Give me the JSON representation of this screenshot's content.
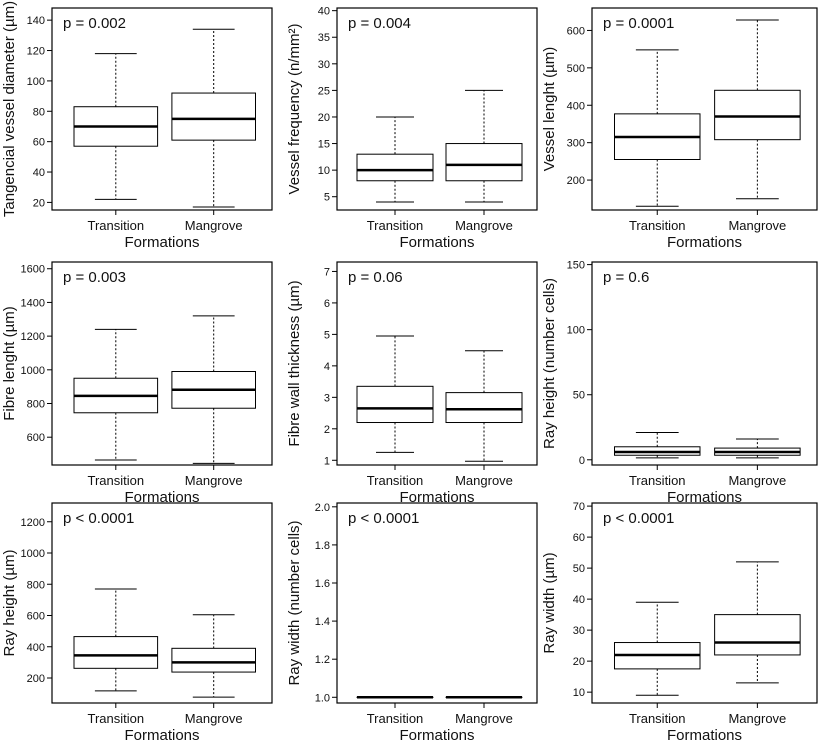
{
  "chart_data": [
    {
      "type": "box",
      "p_value": "p = 0.002",
      "xlabel": "Formations",
      "ylabel": "Tangencial vessel diameter (µm)",
      "categories": [
        "Transition",
        "Mangrove"
      ],
      "ylim": [
        15,
        148
      ],
      "yticks": [
        20,
        40,
        60,
        80,
        100,
        120,
        140
      ],
      "boxes": [
        {
          "min": 22,
          "q1": 57,
          "median": 70,
          "q3": 83,
          "max": 118
        },
        {
          "min": 17,
          "q1": 61,
          "median": 75,
          "q3": 92,
          "max": 134
        }
      ]
    },
    {
      "type": "box",
      "p_value": "p = 0.004",
      "xlabel": "Formations",
      "ylabel": "Vessel frequency (n/mm²)",
      "categories": [
        "Transition",
        "Mangrove"
      ],
      "ylim": [
        2.5,
        40.5
      ],
      "yticks": [
        5,
        10,
        15,
        20,
        25,
        30,
        35,
        40
      ],
      "boxes": [
        {
          "min": 4,
          "q1": 8,
          "median": 10,
          "q3": 13,
          "max": 20
        },
        {
          "min": 4,
          "q1": 8,
          "median": 11,
          "q3": 15,
          "max": 25
        }
      ]
    },
    {
      "type": "box",
      "p_value": "p = 0.0001",
      "xlabel": "Formations",
      "ylabel": "Vessel lenght (µm)",
      "categories": [
        "Transition",
        "Mangrove"
      ],
      "ylim": [
        120,
        660
      ],
      "yticks": [
        200,
        300,
        400,
        500,
        600
      ],
      "boxes": [
        {
          "min": 130,
          "q1": 255,
          "median": 315,
          "q3": 377,
          "max": 548
        },
        {
          "min": 150,
          "q1": 308,
          "median": 370,
          "q3": 440,
          "max": 628
        }
      ]
    },
    {
      "type": "box",
      "p_value": "p = 0.003",
      "xlabel": "Formations",
      "ylabel": "Fibre lenght (µm)",
      "categories": [
        "Transition",
        "Mangrove"
      ],
      "ylim": [
        435,
        1640
      ],
      "yticks": [
        600,
        800,
        1000,
        1200,
        1400,
        1600
      ],
      "boxes": [
        {
          "min": 465,
          "q1": 745,
          "median": 845,
          "q3": 950,
          "max": 1240
        },
        {
          "min": 445,
          "q1": 772,
          "median": 882,
          "q3": 990,
          "max": 1320
        }
      ]
    },
    {
      "type": "box",
      "p_value": "p = 0.06",
      "xlabel": "Formations",
      "ylabel": "Fibre wall thickness (µm)",
      "categories": [
        "Transition",
        "Mangrove"
      ],
      "ylim": [
        0.85,
        7.3
      ],
      "yticks": [
        1,
        2,
        3,
        4,
        5,
        6,
        7
      ],
      "boxes": [
        {
          "min": 1.25,
          "q1": 2.2,
          "median": 2.65,
          "q3": 3.35,
          "max": 4.95
        },
        {
          "min": 0.97,
          "q1": 2.2,
          "median": 2.62,
          "q3": 3.15,
          "max": 4.48
        }
      ]
    },
    {
      "type": "box",
      "p_value": "p = 0.6",
      "xlabel": "Formations",
      "ylabel": "Ray height (number cells)",
      "categories": [
        "Transition",
        "Mangrove"
      ],
      "ylim": [
        -4,
        152
      ],
      "yticks": [
        0,
        50,
        100,
        150
      ],
      "boxes": [
        {
          "min": 1.5,
          "q1": 3.5,
          "median": 6,
          "q3": 10,
          "max": 21
        },
        {
          "min": 1.5,
          "q1": 3.5,
          "median": 6,
          "q3": 9,
          "max": 16
        }
      ]
    },
    {
      "type": "box",
      "p_value": "p < 0.0001",
      "xlabel": "Formations",
      "ylabel": "Ray height (µm)",
      "categories": [
        "Transition",
        "Mangrove"
      ],
      "ylim": [
        40,
        1320
      ],
      "yticks": [
        200,
        400,
        600,
        800,
        1000,
        1200
      ],
      "boxes": [
        {
          "min": 118,
          "q1": 262,
          "median": 345,
          "q3": 465,
          "max": 770
        },
        {
          "min": 78,
          "q1": 238,
          "median": 300,
          "q3": 390,
          "max": 605
        }
      ]
    },
    {
      "type": "box",
      "p_value": "p < 0.0001",
      "xlabel": "Formations",
      "ylabel": "Ray width (number cells)",
      "categories": [
        "Transition",
        "Mangrove"
      ],
      "ylim": [
        0.97,
        2.02
      ],
      "yticks": [
        1.0,
        1.2,
        1.4,
        1.6,
        1.8,
        2.0
      ],
      "ytick_labels": [
        "1.0",
        "1.2",
        "1.4",
        "1.6",
        "1.8",
        "2.0"
      ],
      "boxes": [
        {
          "min": 1,
          "q1": 1,
          "median": 1,
          "q3": 1,
          "max": 1
        },
        {
          "min": 1,
          "q1": 1,
          "median": 1,
          "q3": 1,
          "max": 1
        }
      ]
    },
    {
      "type": "box",
      "p_value": "p < 0.0001",
      "xlabel": "Formations",
      "ylabel": "Ray width (µm)",
      "categories": [
        "Transition",
        "Mangrove"
      ],
      "ylim": [
        6.5,
        71
      ],
      "yticks": [
        10,
        20,
        30,
        40,
        50,
        60,
        70
      ],
      "boxes": [
        {
          "min": 9,
          "q1": 17.5,
          "median": 22,
          "q3": 26,
          "max": 39
        },
        {
          "min": 13,
          "q1": 22,
          "median": 26,
          "q3": 35,
          "max": 52
        }
      ]
    }
  ]
}
